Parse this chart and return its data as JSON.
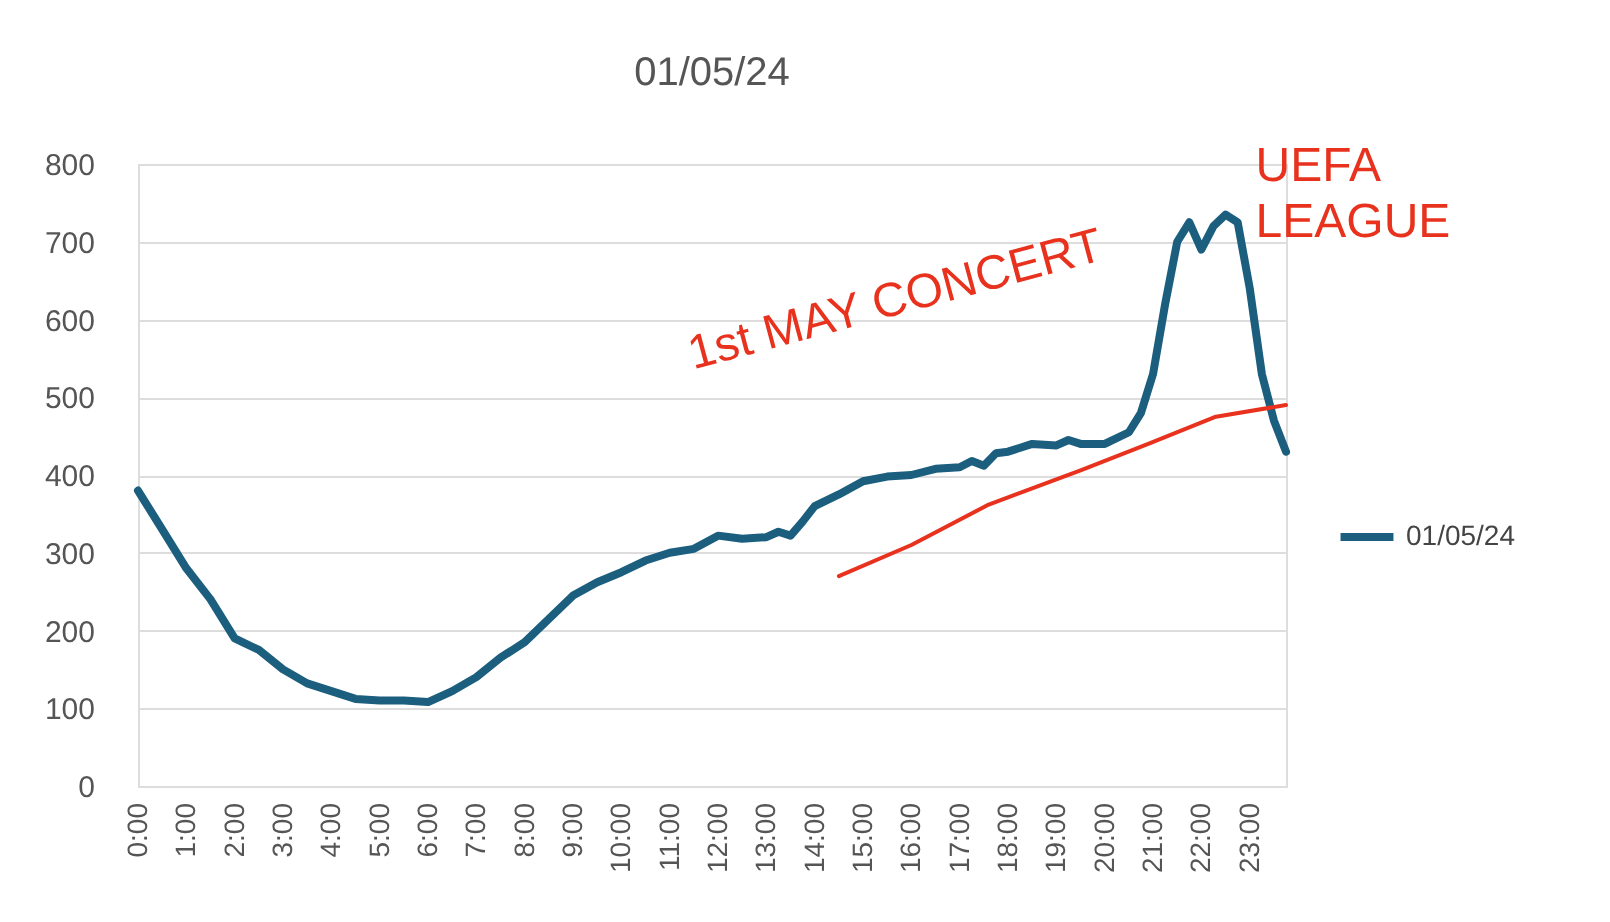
{
  "chart_data": {
    "type": "line",
    "title": "01/05/24",
    "x": [
      0,
      0.5,
      1,
      1.5,
      2,
      2.5,
      3,
      3.5,
      4,
      4.5,
      5,
      5.5,
      6,
      6.5,
      7,
      7.5,
      8,
      8.5,
      9,
      9.5,
      10,
      10.5,
      11,
      11.5,
      12,
      12.5,
      13,
      13.25,
      13.5,
      13.75,
      14,
      14.5,
      15,
      15.5,
      16,
      16.5,
      17,
      17.25,
      17.5,
      17.75,
      18,
      18.5,
      19,
      19.25,
      19.5,
      20,
      20.5,
      20.75,
      21,
      21.25,
      21.5,
      21.75,
      22,
      22.25,
      22.5,
      22.75,
      23,
      23.25,
      23.5,
      23.75
    ],
    "series": [
      {
        "name": "01/05/24",
        "color": "#1b5e7e",
        "values": [
          380,
          330,
          280,
          240,
          190,
          175,
          150,
          132,
          122,
          112,
          110,
          110,
          108,
          122,
          140,
          165,
          185,
          215,
          245,
          262,
          275,
          290,
          300,
          305,
          322,
          318,
          320,
          327,
          322,
          340,
          360,
          375,
          392,
          398,
          400,
          408,
          410,
          418,
          412,
          428,
          430,
          440,
          438,
          445,
          440,
          440,
          455,
          480,
          530,
          620,
          700,
          725,
          690,
          720,
          735,
          725,
          640,
          530,
          470,
          430
        ]
      },
      {
        "color": "#e8321e",
        "x": [
          14.5,
          16,
          17.6,
          19.5,
          20.9,
          22.3,
          23.75
        ],
        "values": [
          270,
          310,
          362,
          406,
          440,
          475,
          490
        ]
      }
    ],
    "xlim": [
      0,
      23.75
    ],
    "xticks": [
      {
        "value": 0,
        "label": "0:00"
      },
      {
        "value": 1,
        "label": "1:00"
      },
      {
        "value": 2,
        "label": "2:00"
      },
      {
        "value": 3,
        "label": "3:00"
      },
      {
        "value": 4,
        "label": "4:00"
      },
      {
        "value": 5,
        "label": "5:00"
      },
      {
        "value": 6,
        "label": "6:00"
      },
      {
        "value": 7,
        "label": "7:00"
      },
      {
        "value": 8,
        "label": "8:00"
      },
      {
        "value": 9,
        "label": "9:00"
      },
      {
        "value": 10,
        "label": "10:00"
      },
      {
        "value": 11,
        "label": "11:00"
      },
      {
        "value": 12,
        "label": "12:00"
      },
      {
        "value": 13,
        "label": "13:00"
      },
      {
        "value": 14,
        "label": "14:00"
      },
      {
        "value": 15,
        "label": "15:00"
      },
      {
        "value": 16,
        "label": "16:00"
      },
      {
        "value": 17,
        "label": "17:00"
      },
      {
        "value": 18,
        "label": "18:00"
      },
      {
        "value": 19,
        "label": "19:00"
      },
      {
        "value": 20,
        "label": "20:00"
      },
      {
        "value": 21,
        "label": "21:00"
      },
      {
        "value": 22,
        "label": "22:00"
      },
      {
        "value": 23,
        "label": "23:00"
      }
    ],
    "ylim": [
      0,
      800
    ],
    "yticks": [
      0,
      100,
      200,
      300,
      400,
      500,
      600,
      700,
      800
    ],
    "grid": "y",
    "legend": "right",
    "annotations": [
      "1st MAY CONCERT",
      {
        "text": "UEFA LEAGUE",
        "x": 22.5,
        "y": 735
      }
    ]
  }
}
